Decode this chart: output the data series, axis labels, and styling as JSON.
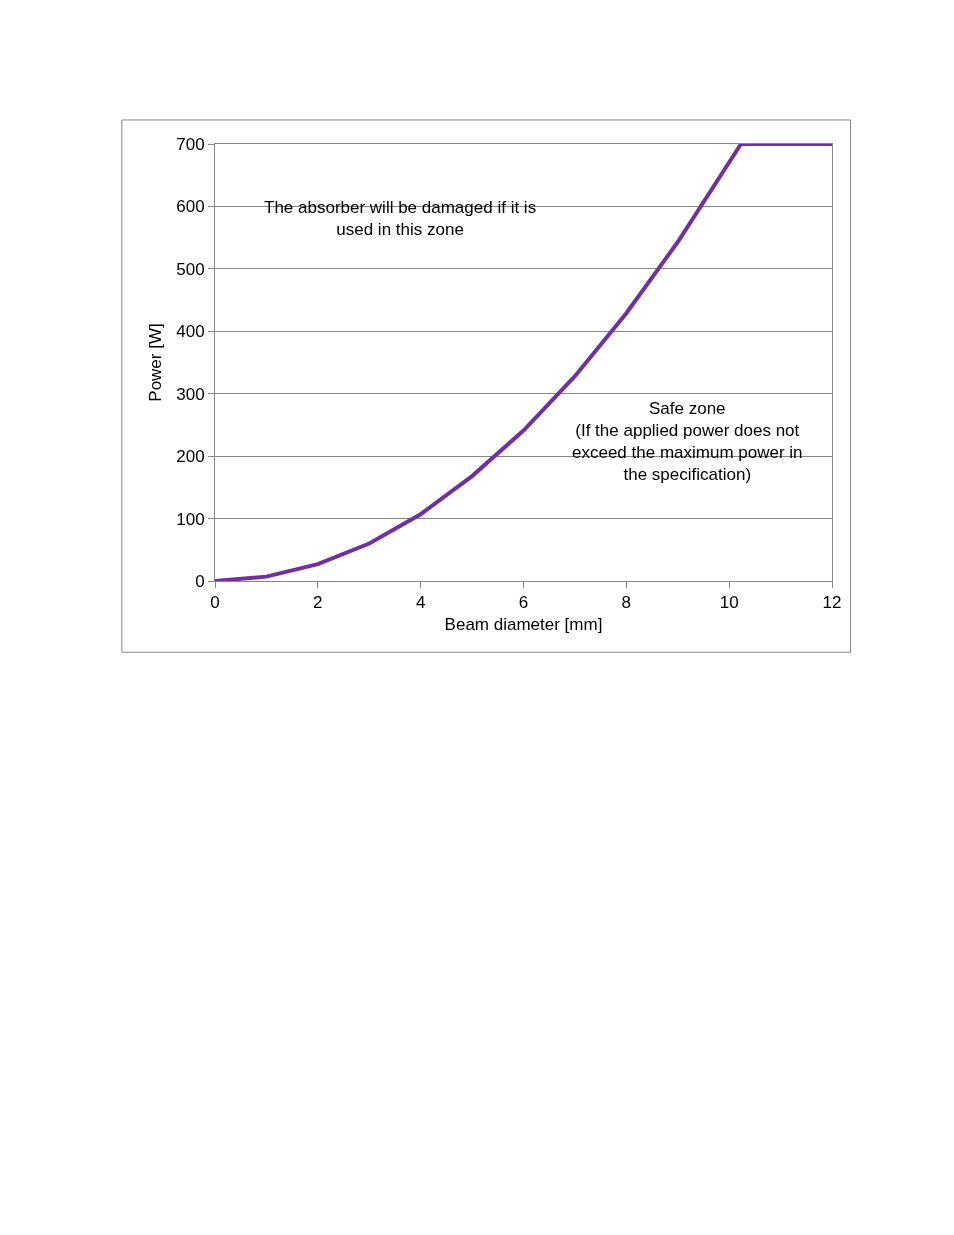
{
  "chart_data": {
    "type": "line",
    "xlabel": "Beam diameter [mm]",
    "ylabel": "Power [W]",
    "x": [
      0,
      1,
      2,
      3,
      4,
      5,
      6,
      7,
      8,
      9,
      10.23,
      12
    ],
    "series": [
      {
        "color": "#7030a0",
        "values": [
          0,
          7,
          27,
          60,
          107,
          168,
          241,
          328,
          429,
          543,
          700,
          700
        ]
      }
    ],
    "xlim": [
      0,
      12
    ],
    "xticks": [
      0,
      2,
      4,
      6,
      8,
      10,
      12
    ],
    "ylim": [
      0,
      700
    ],
    "yticks": [
      0,
      100,
      200,
      300,
      400,
      500,
      600,
      700
    ],
    "grid": "y",
    "legend": false,
    "marker": "none",
    "line_style": "solid",
    "annotations": [
      "The absorber will be damaged if it is\nused in this zone",
      "Safe zone\n(If the applied power does not\nexceed the maximum power in\nthe specification)"
    ]
  }
}
